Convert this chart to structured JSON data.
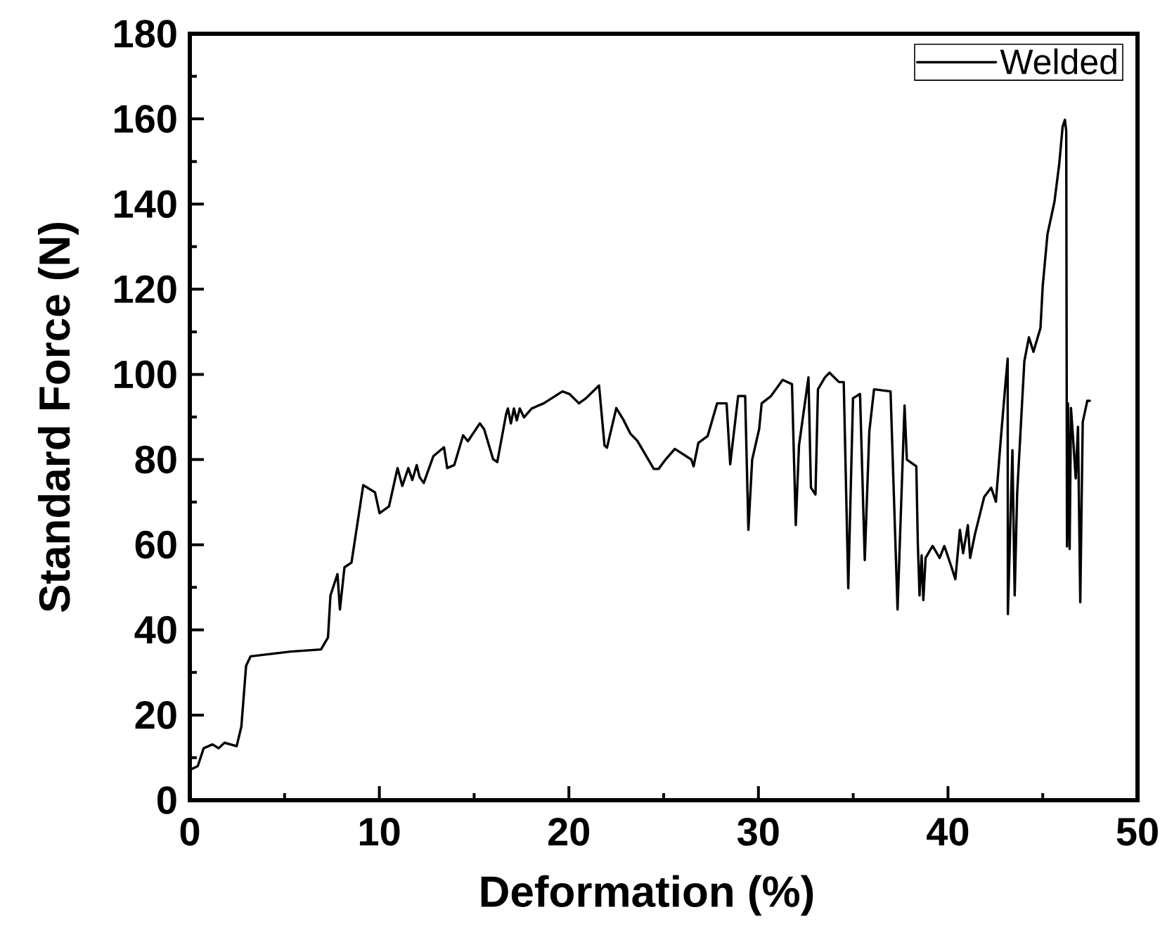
{
  "chart_data": {
    "type": "line",
    "xlabel": "Deformation (%)",
    "ylabel": "Standard Force (N)",
    "x": [
      0.13,
      0.42,
      0.73,
      1.2,
      1.52,
      1.83,
      2.47,
      2.72,
      2.97,
      3.21,
      5.32,
      6.92,
      7.29,
      7.42,
      7.79,
      7.92,
      8.16,
      8.53,
      9.15,
      9.77,
      10.01,
      10.51,
      10.96,
      11.21,
      11.53,
      11.74,
      11.97,
      12.12,
      12.34,
      12.85,
      13.41,
      13.58,
      13.95,
      14.42,
      14.67,
      15.3,
      15.53,
      16.0,
      16.22,
      16.69,
      16.78,
      16.94,
      17.1,
      17.25,
      17.41,
      17.63,
      18.04,
      18.67,
      19.66,
      20.03,
      20.53,
      20.9,
      21.59,
      21.88,
      22.01,
      22.5,
      22.87,
      23.24,
      23.61,
      24.48,
      24.73,
      25.1,
      25.59,
      26.46,
      26.58,
      26.83,
      27.32,
      27.82,
      28.32,
      28.51,
      28.93,
      29.3,
      29.47,
      29.67,
      30.04,
      30.17,
      30.66,
      31.28,
      31.77,
      31.97,
      32.14,
      32.64,
      32.77,
      33.01,
      33.14,
      33.51,
      33.75,
      34.25,
      34.5,
      34.74,
      34.99,
      35.36,
      35.61,
      35.85,
      36.1,
      36.97,
      37.34,
      37.71,
      37.83,
      38.33,
      38.41,
      38.5,
      38.61,
      38.7,
      38.82,
      39.19,
      39.56,
      39.81,
      40.19,
      40.39,
      40.63,
      40.8,
      41.05,
      41.17,
      41.42,
      41.91,
      42.28,
      42.53,
      42.78,
      43.03,
      43.15,
      43.16,
      43.4,
      43.52,
      43.65,
      44.03,
      44.27,
      44.51,
      44.88,
      45.0,
      45.25,
      45.62,
      45.87,
      46.05,
      46.17,
      46.24,
      46.28,
      46.33,
      46.42,
      46.49,
      46.61,
      46.74,
      46.86,
      46.98,
      47.11,
      47.35,
      47.48
    ],
    "series": [
      {
        "name": "Welded",
        "color": "#000000",
        "values": [
          7.4,
          8.0,
          12.2,
          13.1,
          12.2,
          13.5,
          12.7,
          17.3,
          31.6,
          33.8,
          34.9,
          35.4,
          38.2,
          48.1,
          53.1,
          44.8,
          54.7,
          55.8,
          74.0,
          72.3,
          67.4,
          69.0,
          78.0,
          73.8,
          78.0,
          75.2,
          78.7,
          75.9,
          74.5,
          80.8,
          82.9,
          78.0,
          78.7,
          85.7,
          84.3,
          88.5,
          87.1,
          80.1,
          79.4,
          90.7,
          92.0,
          88.5,
          92.0,
          89.2,
          92.0,
          89.9,
          92.0,
          93.2,
          96.0,
          95.4,
          93.2,
          94.4,
          97.4,
          83.3,
          82.8,
          92.1,
          89.4,
          86.1,
          84.4,
          77.8,
          77.8,
          80.0,
          82.5,
          80.0,
          78.4,
          83.9,
          85.5,
          93.2,
          93.2,
          78.9,
          94.9,
          94.9,
          63.5,
          80.0,
          87.2,
          93.2,
          94.9,
          98.7,
          97.7,
          64.6,
          83.3,
          99.3,
          73.4,
          71.8,
          96.5,
          99.3,
          100.4,
          98.2,
          98.2,
          49.8,
          94.4,
          95.4,
          56.4,
          86.6,
          96.5,
          96.0,
          44.8,
          92.7,
          80.0,
          78.4,
          60.2,
          48.1,
          57.5,
          47.0,
          56.9,
          59.7,
          56.9,
          59.7,
          54.7,
          51.9,
          63.5,
          58.0,
          64.6,
          56.9,
          62.4,
          71.2,
          73.4,
          70.1,
          84.4,
          97.7,
          103.7,
          43.7,
          82.2,
          48.1,
          72.0,
          103.1,
          108.7,
          105.3,
          110.9,
          120.8,
          132.9,
          140.6,
          149.4,
          158.2,
          159.8,
          157.1,
          59.6,
          93.2,
          59.0,
          92.1,
          84.4,
          75.6,
          87.7,
          46.5,
          88.8,
          93.8,
          93.8
        ]
      }
    ],
    "xlim": [
      0,
      50
    ],
    "ylim": [
      0,
      180
    ],
    "xticks": [
      0,
      {
        "value": 5,
        "label": null
      },
      10,
      {
        "value": 15,
        "label": null
      },
      20,
      {
        "value": 25,
        "label": null
      },
      30,
      {
        "value": 35,
        "label": null
      },
      40,
      {
        "value": 45,
        "label": null
      },
      50
    ],
    "yticks": [
      0,
      {
        "value": 10,
        "label": null
      },
      20,
      {
        "value": 30,
        "label": null
      },
      40,
      {
        "value": 50,
        "label": null
      },
      60,
      {
        "value": 70,
        "label": null
      },
      80,
      {
        "value": 90,
        "label": null
      },
      100,
      {
        "value": 110,
        "label": null
      },
      120,
      {
        "value": 130,
        "label": null
      },
      140,
      {
        "value": 150,
        "label": null
      },
      160,
      {
        "value": 170,
        "label": null
      },
      180
    ],
    "legend": "top right"
  }
}
